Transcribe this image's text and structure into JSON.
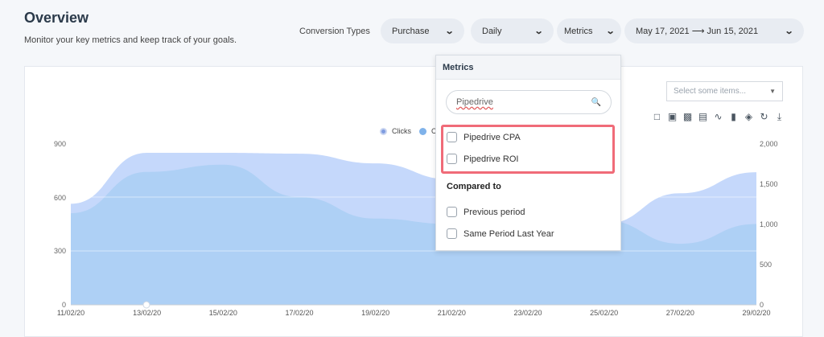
{
  "header": {
    "title": "Overview",
    "subtitle": "Monitor your key metrics and keep track of your goals.",
    "conversion_label": "Conversion Types"
  },
  "filters": {
    "purchase": "Purchase",
    "daily": "Daily",
    "metrics": "Metrics",
    "date_range": "May 17, 2021 ⟶ Jun 15, 2021"
  },
  "select": {
    "placeholder": "Select some items..."
  },
  "toolbar_icons": [
    "zoom-icon",
    "zoom-reset-icon",
    "bar-chart-icon",
    "data-view-icon",
    "line-icon",
    "bar-icon",
    "stack-icon",
    "restore-icon",
    "download-icon"
  ],
  "legend": {
    "clicks": "Clicks",
    "second_partial": "C"
  },
  "dropdown": {
    "header": "Metrics",
    "search_value": "Pipedrive",
    "options": [
      "Pipedrive CPA",
      "Pipedrive ROI"
    ],
    "compared_label": "Compared to",
    "compare_options": [
      "Previous period",
      "Same Period Last Year"
    ]
  },
  "colors": {
    "area_back": "#c5d8fb",
    "area_front": "#a9cff3",
    "highlight": "#f06b78",
    "pill_bg": "#e8ecf2"
  },
  "chart_data": {
    "type": "area",
    "x": [
      "11/02/20",
      "13/02/20",
      "15/02/20",
      "17/02/20",
      "19/02/20",
      "21/02/20",
      "23/02/20",
      "25/02/20",
      "27/02/20",
      "29/02/20"
    ],
    "y_left_ticks": [
      "0",
      "300",
      "600",
      "900"
    ],
    "y_right_ticks": [
      "0",
      "500",
      "1,000",
      "1,500",
      "2,000"
    ],
    "ylim_left": [
      0,
      900
    ],
    "ylim_right": [
      0,
      2000
    ],
    "series": [
      {
        "name": "Clicks",
        "axis": "right",
        "values": [
          1250,
          1880,
          1880,
          1870,
          1750,
          1550,
          1030,
          1000,
          1380,
          1640
        ]
      },
      {
        "axis": "left",
        "values": [
          510,
          740,
          780,
          600,
          480,
          450,
          430,
          470,
          340,
          450
        ]
      }
    ]
  }
}
